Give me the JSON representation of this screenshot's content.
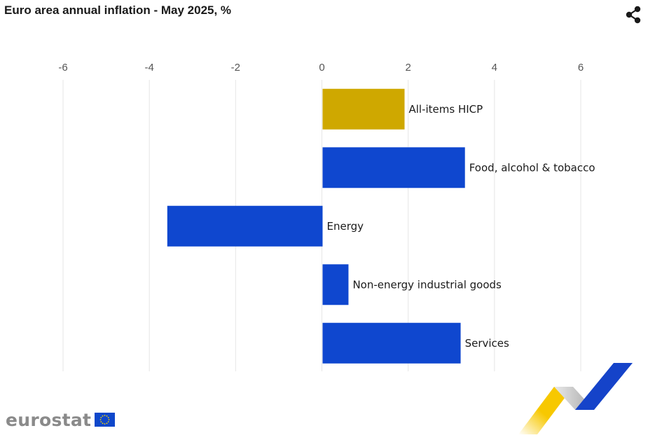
{
  "header": {
    "title": "Euro area annual inflation - May 2025, %",
    "share_icon": "share-icon"
  },
  "footer": {
    "logo_text": "eurostat",
    "flag_icon": "eu-flag-icon",
    "ribbon_icon": "eurostat-ribbon-icon"
  },
  "colors": {
    "highlight": "#CFA800",
    "bar": "#0F47CF",
    "grid": "#E6E6E6",
    "ribbon_yellow": "#F7C800",
    "ribbon_blue": "#1543C9",
    "ribbon_grey": "#B7B7B7"
  },
  "chart_data": {
    "type": "bar",
    "orientation": "horizontal",
    "title": "Euro area annual inflation - May 2025, %",
    "xlim": [
      -6,
      6
    ],
    "x_ticks": [
      -6,
      -4,
      -2,
      0,
      2,
      4,
      6
    ],
    "tick_labels": [
      "-6",
      "-4",
      "-2",
      "0",
      "2",
      "4",
      "6"
    ],
    "categories": [
      "All-items HICP",
      "Food, alcohol & tobacco",
      "Energy",
      "Non-energy industrial goods",
      "Services"
    ],
    "values": [
      1.9,
      3.3,
      -3.6,
      0.6,
      3.2
    ],
    "highlight_index": 0,
    "grid": true,
    "legend": "none"
  }
}
